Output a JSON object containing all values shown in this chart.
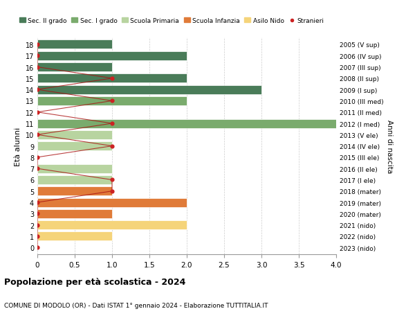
{
  "ages": [
    18,
    17,
    16,
    15,
    14,
    13,
    12,
    11,
    10,
    9,
    8,
    7,
    6,
    5,
    4,
    3,
    2,
    1,
    0
  ],
  "right_labels": [
    "2005 (V sup)",
    "2006 (IV sup)",
    "2007 (III sup)",
    "2008 (II sup)",
    "2009 (I sup)",
    "2010 (III med)",
    "2011 (II med)",
    "2012 (I med)",
    "2013 (V ele)",
    "2014 (IV ele)",
    "2015 (III ele)",
    "2016 (II ele)",
    "2017 (I ele)",
    "2018 (mater)",
    "2019 (mater)",
    "2020 (mater)",
    "2021 (nido)",
    "2022 (nido)",
    "2023 (nido)"
  ],
  "bar_values": [
    1,
    2,
    1,
    2,
    3,
    2,
    0,
    4,
    1,
    1,
    0,
    1,
    1,
    1,
    2,
    1,
    2,
    1,
    0
  ],
  "bar_colors": [
    "#4a7c59",
    "#4a7c59",
    "#4a7c59",
    "#4a7c59",
    "#4a7c59",
    "#7aab6d",
    "#7aab6d",
    "#7aab6d",
    "#b8d4a0",
    "#b8d4a0",
    "#b8d4a0",
    "#b8d4a0",
    "#b8d4a0",
    "#e07b39",
    "#e07b39",
    "#e07b39",
    "#f5d47a",
    "#f5d47a",
    "#f5d47a"
  ],
  "stranieri_x": [
    0,
    0,
    0,
    1,
    0,
    1,
    0,
    1,
    0,
    1,
    0,
    0,
    1,
    1,
    0,
    0,
    0,
    0,
    0
  ],
  "legend_labels": [
    "Sec. II grado",
    "Sec. I grado",
    "Scuola Primaria",
    "Scuola Infanzia",
    "Asilo Nido",
    "Stranieri"
  ],
  "legend_colors": [
    "#4a7c59",
    "#7aab6d",
    "#b8d4a0",
    "#e07b39",
    "#f5d47a",
    "#cc2222"
  ],
  "title": "Popolazione per età scolastica - 2024",
  "subtitle": "COMUNE DI MODOLO (OR) - Dati ISTAT 1° gennaio 2024 - Elaborazione TUTTITALIA.IT",
  "ylabel": "Età alunni",
  "ylabel_right": "Anni di nascita",
  "xlim": [
    0,
    4.0
  ],
  "xticks": [
    0,
    0.5,
    1.0,
    1.5,
    2.0,
    2.5,
    3.0,
    3.5,
    4.0
  ],
  "bar_height": 0.8,
  "bg_color": "#ffffff",
  "grid_color": "#cccccc"
}
